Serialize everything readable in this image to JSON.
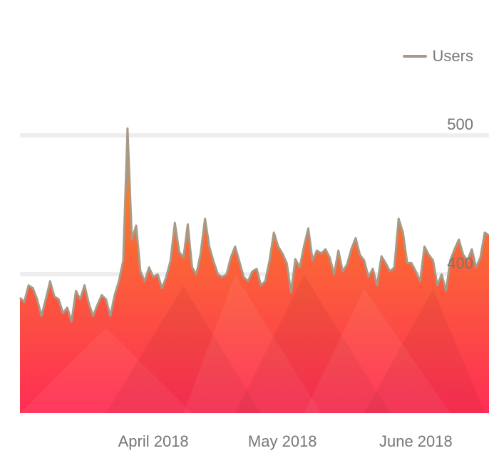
{
  "chart_data": {
    "type": "area",
    "series": [
      {
        "name": "Users",
        "x": [
          "2018-03-01",
          "2018-03-02",
          "2018-03-03",
          "2018-03-04",
          "2018-03-05",
          "2018-03-06",
          "2018-03-07",
          "2018-03-08",
          "2018-03-09",
          "2018-03-10",
          "2018-03-11",
          "2018-03-12",
          "2018-03-13",
          "2018-03-14",
          "2018-03-15",
          "2018-03-16",
          "2018-03-17",
          "2018-03-18",
          "2018-03-19",
          "2018-03-20",
          "2018-03-21",
          "2018-03-22",
          "2018-03-23",
          "2018-03-24",
          "2018-03-25",
          "2018-03-26",
          "2018-03-27",
          "2018-03-28",
          "2018-03-29",
          "2018-03-30",
          "2018-03-31",
          "2018-04-01",
          "2018-04-02",
          "2018-04-03",
          "2018-04-04",
          "2018-04-05",
          "2018-04-06",
          "2018-04-07",
          "2018-04-08",
          "2018-04-09",
          "2018-04-10",
          "2018-04-11",
          "2018-04-12",
          "2018-04-13",
          "2018-04-14",
          "2018-04-15",
          "2018-04-16",
          "2018-04-17",
          "2018-04-18",
          "2018-04-19",
          "2018-04-20",
          "2018-04-21",
          "2018-04-22",
          "2018-04-23",
          "2018-04-24",
          "2018-04-25",
          "2018-04-26",
          "2018-04-27",
          "2018-04-28",
          "2018-04-29",
          "2018-04-30",
          "2018-05-01",
          "2018-05-02",
          "2018-05-03",
          "2018-05-04",
          "2018-05-05",
          "2018-05-06",
          "2018-05-07",
          "2018-05-08",
          "2018-05-09",
          "2018-05-10",
          "2018-05-11",
          "2018-05-12",
          "2018-05-13",
          "2018-05-14",
          "2018-05-15",
          "2018-05-16",
          "2018-05-17",
          "2018-05-18",
          "2018-05-19",
          "2018-05-20",
          "2018-05-21",
          "2018-05-22",
          "2018-05-23",
          "2018-05-24",
          "2018-05-25",
          "2018-05-26",
          "2018-05-27",
          "2018-05-28",
          "2018-05-29",
          "2018-05-30",
          "2018-05-31",
          "2018-06-01",
          "2018-06-02",
          "2018-06-03",
          "2018-06-04",
          "2018-06-05",
          "2018-06-06",
          "2018-06-07",
          "2018-06-08",
          "2018-06-09",
          "2018-06-10",
          "2018-06-11",
          "2018-06-12",
          "2018-06-13",
          "2018-06-14",
          "2018-06-15",
          "2018-06-16",
          "2018-06-17",
          "2018-06-18"
        ],
        "values": [
          383,
          380,
          392,
          390,
          382,
          370,
          382,
          395,
          384,
          382,
          372,
          376,
          366,
          388,
          382,
          392,
          379,
          370,
          378,
          385,
          382,
          370,
          385,
          395,
          410,
          505,
          425,
          435,
          402,
          395,
          405,
          398,
          400,
          390,
          398,
          410,
          437,
          416,
          412,
          436,
          405,
          400,
          415,
          440,
          420,
          409,
          400,
          398,
          400,
          412,
          420,
          409,
          398,
          395,
          402,
          404,
          392,
          395,
          410,
          430,
          420,
          415,
          408,
          387,
          411,
          405,
          420,
          433,
          410,
          417,
          415,
          418,
          412,
          400,
          417,
          402,
          407,
          418,
          426,
          414,
          410,
          398,
          404,
          392,
          413,
          408,
          402,
          405,
          440,
          430,
          408,
          408,
          402,
          395,
          420,
          414,
          410,
          392,
          400,
          388,
          410,
          418,
          425,
          414,
          410,
          418,
          405,
          412,
          430,
          428
        ]
      }
    ],
    "x_tick_labels": [
      "April 2018",
      "May 2018",
      "June 2018"
    ],
    "x_tick_dates": [
      "2018-04-01",
      "2018-05-01",
      "2018-06-01"
    ],
    "y_ticks": [
      400,
      500
    ],
    "ylim": [
      300,
      520
    ],
    "title": "",
    "xlabel": "",
    "ylabel": "",
    "grid": "horizontal",
    "legend_position": "top-right",
    "colors": {
      "line": "#a79a86",
      "fill_top": "#f7921e",
      "fill_bottom": "#ff2d55",
      "grid": "#eeeeee",
      "tick_text": "#777777"
    }
  }
}
